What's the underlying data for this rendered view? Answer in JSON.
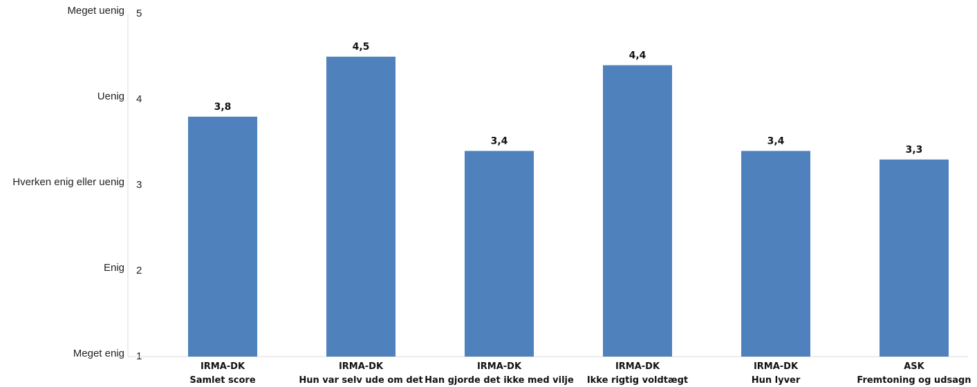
{
  "chart_data": {
    "type": "bar",
    "categories": [
      [
        "IRMA-DK",
        "Samlet score"
      ],
      [
        "IRMA-DK",
        "Hun var selv ude om det"
      ],
      [
        "IRMA-DK",
        "Han gjorde det ikke med vilje"
      ],
      [
        "IRMA-DK",
        "Ikke rigtig voldtægt"
      ],
      [
        "IRMA-DK",
        "Hun lyver"
      ],
      [
        "ASK",
        "Fremtoning og udsagn"
      ]
    ],
    "values": [
      3.8,
      4.5,
      3.4,
      4.4,
      3.4,
      3.3
    ],
    "data_labels": [
      "3,8",
      "4,5",
      "3,4",
      "4,4",
      "3,4",
      "3,3"
    ],
    "ylim": [
      1,
      5
    ],
    "yticks": [
      1,
      2,
      3,
      4,
      5
    ],
    "y_scale_labels": [
      "Meget enig",
      "Enig",
      "Hverken enig eller uenig",
      "Uenig",
      "Meget uenig"
    ],
    "bar_color": "#4f81bd",
    "grid": false,
    "legend": "none"
  }
}
